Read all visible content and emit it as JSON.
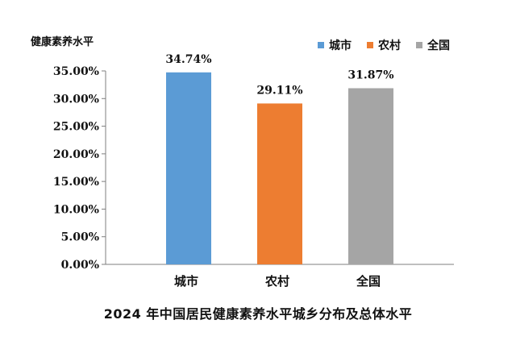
{
  "chart_data": {
    "type": "bar",
    "title": "2024 年中国居民健康素养水平城乡分布及总体水平",
    "ylabel": "健康素养水平",
    "xlabel": "",
    "categories": [
      "城市",
      "农村",
      "全国"
    ],
    "values": [
      34.74,
      29.11,
      31.87
    ],
    "value_labels": [
      "34.74%",
      "29.11%",
      "31.87%"
    ],
    "colors": [
      "#5B9BD5",
      "#ED7D31",
      "#A5A5A5"
    ],
    "ylim": [
      0,
      35
    ],
    "yticks": [
      0,
      5,
      10,
      15,
      20,
      25,
      30,
      35
    ],
    "ytick_labels": [
      "0.00%",
      "5.00%",
      "10.00%",
      "15.00%",
      "20.00%",
      "25.00%",
      "30.00%",
      "35.00%"
    ],
    "grid": false,
    "legend": {
      "position": "top-right",
      "entries": [
        {
          "label": "城市",
          "color": "#5B9BD5"
        },
        {
          "label": "农村",
          "color": "#ED7D31"
        },
        {
          "label": "全国",
          "color": "#A5A5A5"
        }
      ]
    }
  }
}
